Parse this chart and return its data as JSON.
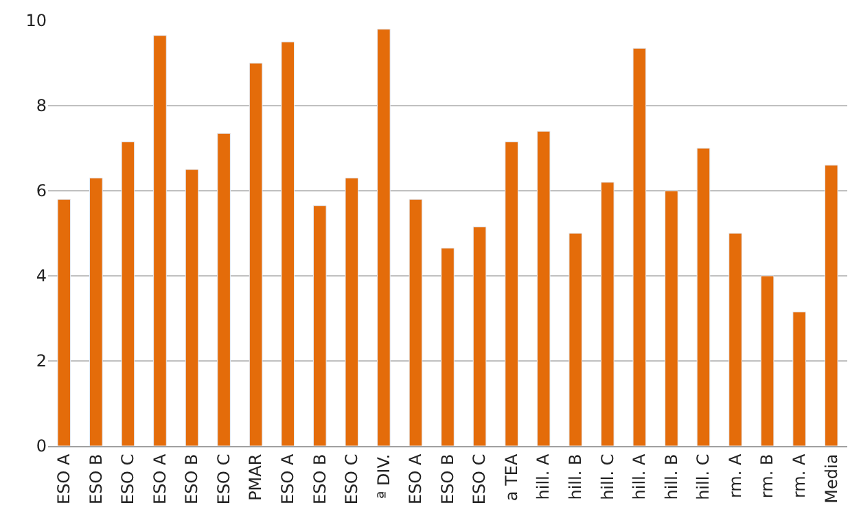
{
  "chart_data": {
    "type": "bar",
    "categories": [
      "ESO A",
      "ESO B",
      "ESO C",
      "ESO A",
      "ESO B",
      "ESO C",
      "PMAR",
      "ESO A",
      "ESO B",
      "ESO C",
      "ª DIV.",
      "ESO A",
      "ESO B",
      "ESO C",
      "a TEA",
      "hill. A",
      "hill. B",
      "hill. C",
      "hill. A",
      "hill. B",
      "hill. C",
      "rm. A",
      "rm. B",
      "rm. A",
      "Media"
    ],
    "values": [
      5.8,
      6.3,
      7.15,
      9.65,
      6.5,
      7.35,
      9.0,
      9.5,
      5.65,
      6.3,
      9.8,
      5.8,
      4.65,
      5.15,
      7.15,
      7.4,
      5.0,
      6.2,
      9.35,
      6.0,
      7.0,
      5.0,
      4.0,
      3.15,
      6.6
    ],
    "color": "#e46c0a",
    "ylim": [
      0,
      10
    ],
    "yticks": [
      0,
      2,
      4,
      6,
      8,
      10
    ],
    "grid": "y"
  }
}
